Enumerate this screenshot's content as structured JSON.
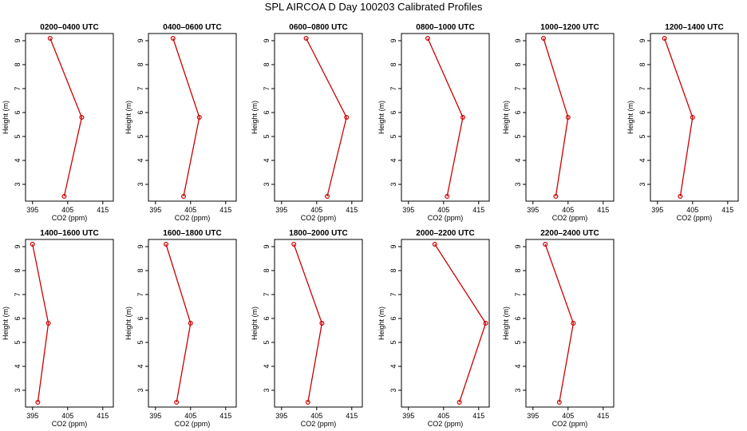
{
  "title": "SPL AIRCOA D  Day 100203  Calibrated Profiles",
  "chart_data": {
    "type": "line",
    "xlabel": "CO2 (ppm)",
    "ylabel": "Height (m)",
    "xlim": [
      393,
      418
    ],
    "ylim": [
      2.3,
      9.3
    ],
    "xticks": [
      395,
      405,
      415
    ],
    "yticks": [
      3,
      4,
      5,
      6,
      7,
      8,
      9
    ],
    "heights": [
      9.1,
      5.8,
      2.5
    ],
    "line_color": "#cc0000",
    "panels": [
      {
        "title": "0200–0400 UTC",
        "x": [
          400.0,
          409.0,
          404.0
        ]
      },
      {
        "title": "0400–0600 UTC",
        "x": [
          400.0,
          407.5,
          403.0
        ]
      },
      {
        "title": "0600–0800 UTC",
        "x": [
          402.0,
          413.5,
          408.0
        ]
      },
      {
        "title": "0800–1000 UTC",
        "x": [
          400.5,
          410.5,
          406.0
        ]
      },
      {
        "title": "1000–1200 UTC",
        "x": [
          398.0,
          405.0,
          401.5
        ]
      },
      {
        "title": "1200–1400 UTC",
        "x": [
          397.0,
          405.0,
          401.5
        ]
      },
      {
        "title": "1400–1600 UTC",
        "x": [
          395.0,
          399.5,
          396.5
        ]
      },
      {
        "title": "1600–1800 UTC",
        "x": [
          398.0,
          405.0,
          401.0
        ]
      },
      {
        "title": "1800–2000 UTC",
        "x": [
          398.5,
          406.5,
          402.5
        ]
      },
      {
        "title": "2000–2200 UTC",
        "x": [
          402.5,
          417.0,
          409.5
        ]
      },
      {
        "title": "2200–2400 UTC",
        "x": [
          398.5,
          406.5,
          402.5
        ]
      }
    ]
  }
}
